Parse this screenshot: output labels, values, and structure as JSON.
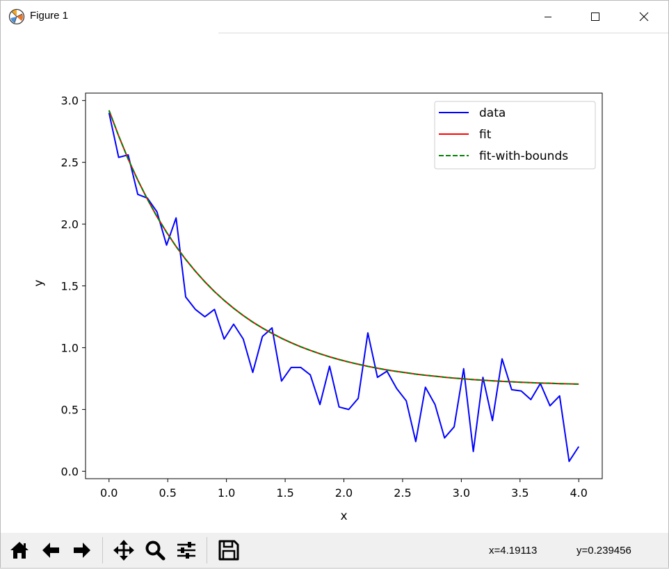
{
  "window": {
    "title": "Figure 1",
    "icons": {
      "app": "matplotlib-logo-icon",
      "minimize": "minimize-icon",
      "maximize": "maximize-icon",
      "close": "close-icon"
    }
  },
  "toolbar": {
    "buttons": [
      {
        "name": "home",
        "icon": "home-icon"
      },
      {
        "name": "back",
        "icon": "arrow-left-icon"
      },
      {
        "name": "forward",
        "icon": "arrow-right-icon"
      },
      {
        "name": "pan",
        "icon": "move-icon"
      },
      {
        "name": "zoom",
        "icon": "magnifier-icon"
      },
      {
        "name": "configure-subplots",
        "icon": "sliders-icon"
      },
      {
        "name": "save",
        "icon": "floppy-disk-icon"
      }
    ],
    "coord_x": "x=4.19113",
    "coord_y": "y=0.239456"
  },
  "chart_data": {
    "type": "line",
    "xlabel": "x",
    "ylabel": "y",
    "xlim": [
      -0.2,
      4.2
    ],
    "ylim": [
      -0.06,
      3.06
    ],
    "xticks": [
      0.0,
      0.5,
      1.0,
      1.5,
      2.0,
      2.5,
      3.0,
      3.5,
      4.0
    ],
    "xtick_labels": [
      "0.0",
      "0.5",
      "1.0",
      "1.5",
      "2.0",
      "2.5",
      "3.0",
      "3.5",
      "4.0"
    ],
    "yticks": [
      0.0,
      0.5,
      1.0,
      1.5,
      2.0,
      2.5,
      3.0
    ],
    "ytick_labels": [
      "0.0",
      "0.5",
      "1.0",
      "1.5",
      "2.0",
      "2.5",
      "3.0"
    ],
    "grid": false,
    "legend_position": "top-right",
    "x": [
      0.0,
      0.082,
      0.163,
      0.245,
      0.327,
      0.408,
      0.49,
      0.571,
      0.653,
      0.735,
      0.816,
      0.898,
      0.98,
      1.061,
      1.143,
      1.224,
      1.306,
      1.388,
      1.469,
      1.551,
      1.633,
      1.714,
      1.796,
      1.878,
      1.959,
      2.041,
      2.122,
      2.204,
      2.286,
      2.367,
      2.449,
      2.531,
      2.612,
      2.694,
      2.776,
      2.857,
      2.939,
      3.02,
      3.102,
      3.184,
      3.265,
      3.347,
      3.429,
      3.51,
      3.592,
      3.673,
      3.755,
      3.837,
      3.918,
      4.0
    ],
    "series": [
      {
        "name": "data",
        "color": "#0000ff",
        "style": "solid",
        "values": [
          2.9,
          2.54,
          2.56,
          2.24,
          2.21,
          2.1,
          1.83,
          2.05,
          1.41,
          1.31,
          1.25,
          1.31,
          1.07,
          1.19,
          1.07,
          0.8,
          1.09,
          1.16,
          0.73,
          0.84,
          0.84,
          0.78,
          0.54,
          0.85,
          0.52,
          0.5,
          0.59,
          1.12,
          0.76,
          0.81,
          0.67,
          0.57,
          0.24,
          0.68,
          0.54,
          0.27,
          0.36,
          0.83,
          0.16,
          0.76,
          0.41,
          0.91,
          0.66,
          0.65,
          0.58,
          0.71,
          0.53,
          0.61,
          0.08,
          0.2
        ]
      },
      {
        "name": "fit",
        "color": "#ff0000",
        "style": "solid",
        "values": [
          2.92,
          2.714,
          2.526,
          2.356,
          2.201,
          2.061,
          1.934,
          1.819,
          1.714,
          1.619,
          1.533,
          1.454,
          1.383,
          1.319,
          1.26,
          1.207,
          1.159,
          1.116,
          1.076,
          1.04,
          1.007,
          0.978,
          0.951,
          0.926,
          0.904,
          0.884,
          0.866,
          0.849,
          0.834,
          0.82,
          0.808,
          0.797,
          0.786,
          0.777,
          0.769,
          0.761,
          0.754,
          0.748,
          0.742,
          0.737,
          0.732,
          0.728,
          0.724,
          0.72,
          0.717,
          0.714,
          0.712,
          0.709,
          0.707,
          0.705
        ]
      },
      {
        "name": "fit-with-bounds",
        "color": "#008000",
        "style": "dashed",
        "values": [
          2.92,
          2.714,
          2.526,
          2.356,
          2.201,
          2.061,
          1.934,
          1.819,
          1.714,
          1.619,
          1.533,
          1.454,
          1.383,
          1.319,
          1.26,
          1.207,
          1.159,
          1.116,
          1.076,
          1.04,
          1.007,
          0.978,
          0.951,
          0.926,
          0.904,
          0.884,
          0.866,
          0.849,
          0.834,
          0.82,
          0.808,
          0.797,
          0.786,
          0.777,
          0.769,
          0.761,
          0.754,
          0.748,
          0.742,
          0.737,
          0.732,
          0.728,
          0.724,
          0.72,
          0.717,
          0.714,
          0.712,
          0.709,
          0.707,
          0.705
        ]
      }
    ]
  }
}
